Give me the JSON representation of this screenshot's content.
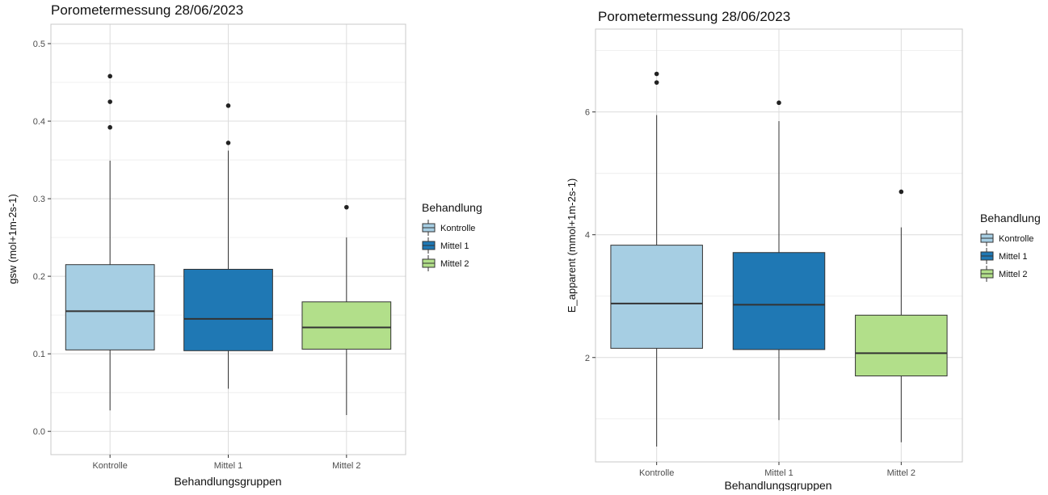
{
  "chart_data": [
    {
      "type": "box",
      "title": "Porometermessung 28/06/2023",
      "xlabel": "Behandlungsgruppen",
      "ylabel": "gsw (mol+1m-2s-1)",
      "ylim": [
        -0.03,
        0.525
      ],
      "y_ticks": [
        0.0,
        0.1,
        0.2,
        0.3,
        0.4,
        0.5
      ],
      "y_tick_labels": [
        "0.0",
        "0.1",
        "0.2",
        "0.3",
        "0.4",
        "0.5"
      ],
      "y_minor_ticks": [
        0.05,
        0.15,
        0.25,
        0.35,
        0.45
      ],
      "categories": [
        "Kontrolle",
        "Mittel 1",
        "Mittel 2"
      ],
      "grid": true,
      "legend": {
        "title": "Behandlung",
        "position": "right"
      },
      "series": [
        {
          "name": "Kontrolle",
          "color": "#a6cee3",
          "q1": 0.105,
          "median": 0.155,
          "q3": 0.215,
          "whisker_low": 0.027,
          "whisker_high": 0.349,
          "outliers": [
            0.392,
            0.425,
            0.458
          ]
        },
        {
          "name": "Mittel 1",
          "color": "#1f78b4",
          "q1": 0.104,
          "median": 0.145,
          "q3": 0.209,
          "whisker_low": 0.055,
          "whisker_high": 0.362,
          "outliers": [
            0.372,
            0.42
          ]
        },
        {
          "name": "Mittel 2",
          "color": "#b2df8a",
          "q1": 0.106,
          "median": 0.134,
          "q3": 0.167,
          "whisker_low": 0.021,
          "whisker_high": 0.25,
          "outliers": [
            0.289
          ]
        }
      ]
    },
    {
      "type": "box",
      "title": "Porometermessung 28/06/2023",
      "xlabel": "Behandlungsgruppen",
      "ylabel": "E_apparent (mmol+1m-2s-1)",
      "ylim": [
        0.3,
        7.35
      ],
      "y_ticks": [
        2,
        4,
        6
      ],
      "y_tick_labels": [
        "2",
        "4",
        "6"
      ],
      "y_minor_ticks": [
        1,
        3,
        5,
        7
      ],
      "categories": [
        "Kontrolle",
        "Mittel 1",
        "Mittel 2"
      ],
      "grid": true,
      "legend": {
        "title": "Behandlung",
        "position": "right"
      },
      "series": [
        {
          "name": "Kontrolle",
          "color": "#a6cee3",
          "q1": 2.15,
          "median": 2.88,
          "q3": 3.83,
          "whisker_low": 0.55,
          "whisker_high": 5.95,
          "outliers": [
            6.48,
            6.62
          ]
        },
        {
          "name": "Mittel 1",
          "color": "#1f78b4",
          "q1": 2.13,
          "median": 2.86,
          "q3": 3.71,
          "whisker_low": 0.98,
          "whisker_high": 5.85,
          "outliers": [
            6.15
          ]
        },
        {
          "name": "Mittel 2",
          "color": "#b2df8a",
          "q1": 1.7,
          "median": 2.07,
          "q3": 2.69,
          "whisker_low": 0.62,
          "whisker_high": 4.12,
          "outliers": [
            4.7
          ]
        }
      ]
    }
  ]
}
